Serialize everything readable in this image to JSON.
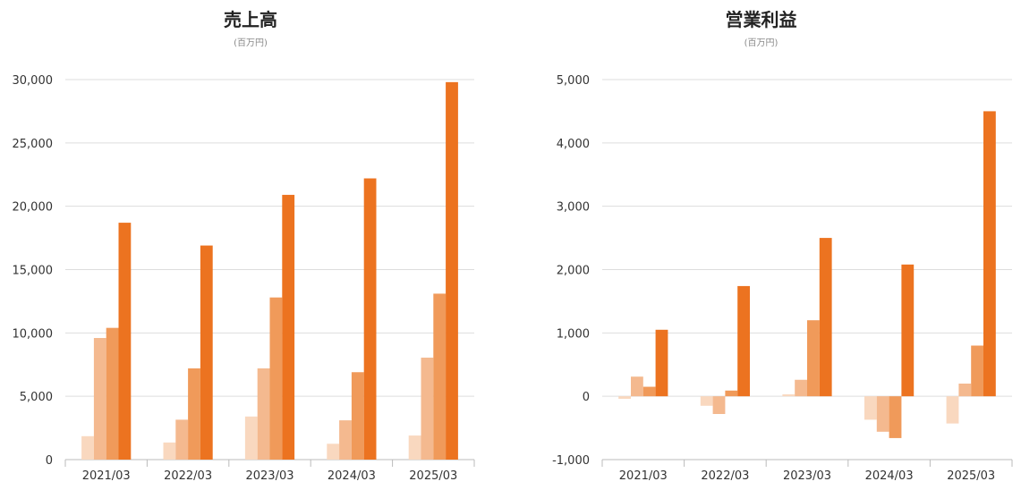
{
  "unit_label": "(百万円)",
  "colors": [
    "#f9d8bf",
    "#f4b98f",
    "#f09a5a",
    "#ec7320"
  ],
  "chart_data": [
    {
      "type": "bar",
      "title": "売上高",
      "subtitle": "(百万円)",
      "categories": [
        "2021/03",
        "2022/03",
        "2023/03",
        "2024/03",
        "2025/03"
      ],
      "series": [
        {
          "values": [
            1850,
            1350,
            3400,
            1250,
            1900
          ]
        },
        {
          "values": [
            9600,
            3150,
            7200,
            3100,
            8050
          ]
        },
        {
          "values": [
            10400,
            7200,
            12800,
            6900,
            13100
          ]
        },
        {
          "values": [
            18700,
            16900,
            20900,
            22200,
            29800
          ]
        }
      ],
      "ylim": [
        0,
        30000
      ],
      "yticks": [
        "0",
        "5,000",
        "10,000",
        "15,000",
        "20,000",
        "25,000",
        "30,000"
      ],
      "ytick_values": [
        0,
        5000,
        10000,
        15000,
        20000,
        25000,
        30000
      ],
      "grid": true
    },
    {
      "type": "bar",
      "title": "営業利益",
      "subtitle": "(百万円)",
      "categories": [
        "2021/03",
        "2022/03",
        "2023/03",
        "2024/03",
        "2025/03"
      ],
      "series": [
        {
          "values": [
            -40,
            -150,
            30,
            -370,
            -430
          ]
        },
        {
          "values": [
            310,
            -280,
            260,
            -560,
            200
          ]
        },
        {
          "values": [
            150,
            90,
            1200,
            -660,
            800
          ]
        },
        {
          "values": [
            1050,
            1740,
            2500,
            2080,
            4500
          ]
        }
      ],
      "ylim": [
        -1000,
        5000
      ],
      "yticks": [
        "-1,000",
        "0",
        "1,000",
        "2,000",
        "3,000",
        "4,000",
        "5,000"
      ],
      "ytick_values": [
        -1000,
        0,
        1000,
        2000,
        3000,
        4000,
        5000
      ],
      "grid": true
    }
  ]
}
